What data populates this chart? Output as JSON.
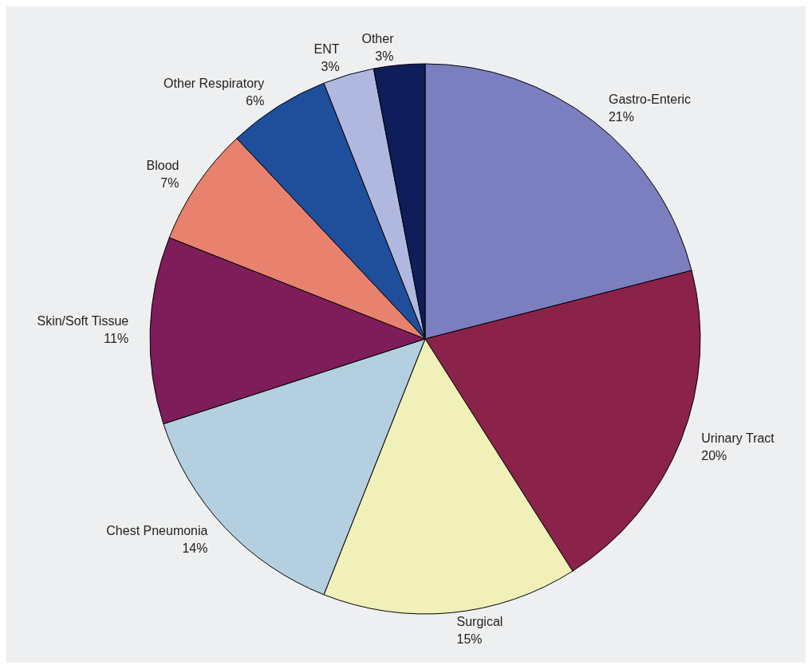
{
  "chart_data": {
    "type": "pie",
    "categories": [
      "Gastro-Enteric",
      "Urinary Tract",
      "Surgical",
      "Chest Pneumonia",
      "Skin/Soft Tissue",
      "Blood",
      "Other Respiratory",
      "ENT",
      "Other"
    ],
    "values": [
      21,
      20,
      15,
      14,
      11,
      7,
      6,
      3,
      3
    ],
    "value_labels": [
      "21%",
      "20%",
      "15%",
      "14%",
      "11%",
      "7%",
      "6%",
      "3%",
      "3%"
    ],
    "colors": [
      "#7b7fc0",
      "#8b2249",
      "#f0f0b8",
      "#b3cfe0",
      "#7e1d5a",
      "#e8826e",
      "#1f4f9a",
      "#b0b8e0",
      "#0f1e5a"
    ],
    "legend": false
  }
}
